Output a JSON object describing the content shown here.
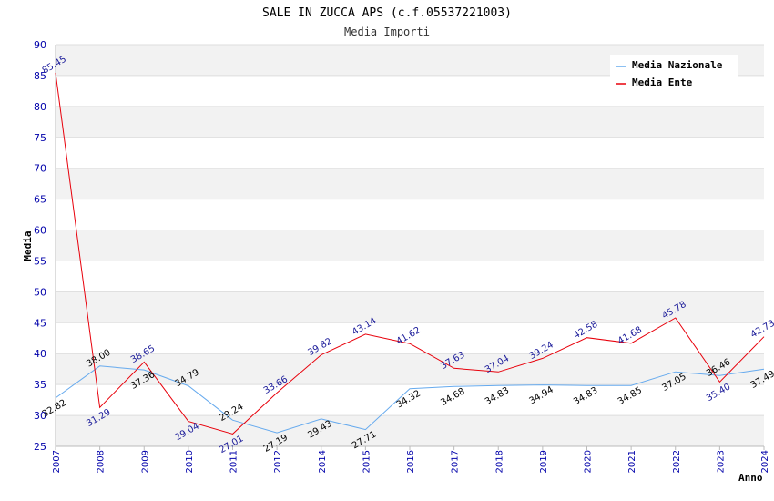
{
  "chart_data": {
    "type": "line",
    "title": "SALE IN ZUCCA APS (c.f.05537221003)",
    "subtitle": "Media Importi",
    "xlabel": "Anno",
    "ylabel": "Media",
    "ylim": [
      25,
      90
    ],
    "yticks": [
      25,
      30,
      35,
      40,
      45,
      50,
      55,
      60,
      65,
      70,
      75,
      80,
      85,
      90
    ],
    "categories": [
      "2007",
      "2008",
      "2009",
      "2010",
      "2011",
      "2012",
      "2014",
      "2015",
      "2016",
      "2017",
      "2018",
      "2019",
      "2020",
      "2021",
      "2022",
      "2023",
      "2024"
    ],
    "series": [
      {
        "name": "Media Nazionale",
        "color": "#66aaee",
        "values": [
          32.82,
          38.0,
          37.36,
          34.79,
          29.24,
          27.19,
          29.43,
          27.71,
          34.32,
          34.68,
          34.83,
          34.94,
          34.83,
          34.85,
          37.05,
          36.46,
          37.49
        ],
        "labels": [
          "32.82",
          "38.00",
          "37.36",
          "34.79",
          "29.24",
          "27.19",
          "29.43",
          "27.71",
          "34.32",
          "34.68",
          "34.83",
          "34.94",
          "34.83",
          "34.85",
          "37.05",
          "36.46",
          "37.49"
        ]
      },
      {
        "name": "Media Ente",
        "color": "#e8000b",
        "values": [
          85.45,
          31.29,
          38.65,
          29.04,
          27.01,
          33.66,
          39.82,
          43.14,
          41.62,
          37.63,
          37.04,
          39.24,
          42.58,
          41.68,
          45.78,
          35.4,
          42.73
        ],
        "labels": [
          "85.45",
          "31.29",
          "38.65",
          "29.04",
          "27.01",
          "33.66",
          "39.82",
          "43.14",
          "41.62",
          "37.63",
          "37.04",
          "39.24",
          "42.58",
          "41.68",
          "45.78",
          "35.40",
          "42.73"
        ]
      }
    ],
    "legend": {
      "position": "top-right"
    }
  }
}
